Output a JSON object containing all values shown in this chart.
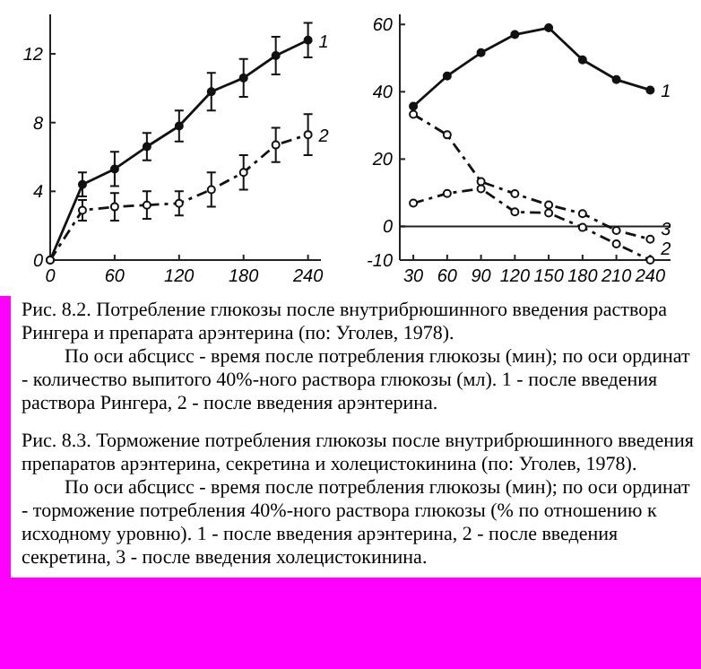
{
  "chart_data": [
    {
      "type": "line",
      "x": [
        0,
        30,
        60,
        90,
        120,
        150,
        180,
        210,
        240
      ],
      "xlim": [
        0,
        252
      ],
      "xticks": [
        0,
        60,
        120,
        180,
        240
      ],
      "ylim": [
        0,
        14.3
      ],
      "yticks": [
        0,
        4,
        8,
        12
      ],
      "marker": "circle",
      "series": [
        {
          "name": "1",
          "color": "#111111",
          "line_style": "solid",
          "values": [
            0,
            4.4,
            5.3,
            6.6,
            7.8,
            9.8,
            10.6,
            11.9,
            12.8
          ],
          "errors": [
            null,
            0.7,
            1,
            0.8,
            0.9,
            1.1,
            1.1,
            1.1,
            1
          ]
        },
        {
          "name": "2",
          "color": "#111111",
          "line_style": "dashed",
          "values": [
            0,
            2.9,
            3.1,
            3.2,
            3.3,
            4.1,
            5.1,
            6.7,
            7.3
          ],
          "errors": [
            null,
            0.6,
            0.8,
            0.8,
            0.7,
            1,
            1,
            1,
            1.2
          ]
        }
      ],
      "annotations": [
        "Рис. 8.2. Потребление глюкозы после внутрибрюшинного введения раствора Рингера и препарата арэнтерина (по: Уголев, 1978).",
        "По оси абсцисс - время после потребления глюкозы (мин); по оси ординат - количество выпитого 40%-ного раствора глюкозы (мл). 1 - после введения раствора Рингера, 2 - после введения арэнтерина."
      ]
    },
    {
      "type": "line",
      "x": [
        30,
        60,
        90,
        120,
        150,
        180,
        210,
        240
      ],
      "xlim": [
        18,
        258
      ],
      "xticks": [
        30,
        60,
        90,
        120,
        150,
        180,
        210,
        240
      ],
      "ylim": [
        -10,
        63
      ],
      "yticks": [
        -10,
        0,
        20,
        40,
        60
      ],
      "marker": "circle",
      "ref_lines": [
        {
          "axis": "y",
          "value": 0
        }
      ],
      "series": [
        {
          "name": "1",
          "color": "#111111",
          "line_style": "solid",
          "values": [
            35.7,
            44.7,
            51.6,
            57,
            59,
            49.5,
            43.6,
            40.5
          ]
        },
        {
          "name": "2",
          "color": "#111111",
          "line_style": "dashed",
          "values": [
            6.9,
            9.8,
            11.2,
            4.3,
            4,
            -0.3,
            -5.2,
            -10
          ]
        },
        {
          "name": "3",
          "color": "#111111",
          "line_style": "dashed",
          "values": [
            33.3,
            27.2,
            13.3,
            9.7,
            6.4,
            3.8,
            -1.2,
            -3.8
          ]
        }
      ],
      "annotations": [
        "Рис. 8.3. Торможение потребления глюкозы после внутрибрюшинного введения препаратов арэнтерина, секретина и холецистокинина (по: Уголев, 1978).",
        "По оси абсцисс - время после потребления глюкозы (мин); по оси ординат - торможение потребления 40%-ного раствора глюкозы (% по отношению к исходному уровню). 1 - после введения арэнтерина, 2 - после введения секретина, 3 - после введения холецистокинина."
      ]
    }
  ]
}
